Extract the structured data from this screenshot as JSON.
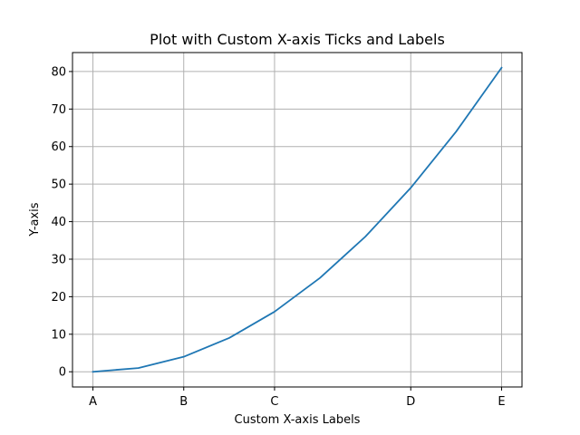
{
  "chart_data": {
    "type": "line",
    "title": "Plot with Custom X-axis Ticks and Labels",
    "xlabel": "Custom X-axis Labels",
    "ylabel": "Y-axis",
    "x": [
      0,
      1,
      2,
      3,
      4,
      5,
      6,
      7,
      8,
      9
    ],
    "series": [
      {
        "values": [
          0,
          1,
          4,
          9,
          16,
          25,
          36,
          49,
          64,
          81
        ],
        "color": "#1f77b4"
      }
    ],
    "xticks": [
      {
        "value": 0,
        "label": "A"
      },
      {
        "value": 2,
        "label": "B"
      },
      {
        "value": 4,
        "label": "C"
      },
      {
        "value": 7,
        "label": "D"
      },
      {
        "value": 9,
        "label": "E"
      }
    ],
    "yticks": [
      0,
      10,
      20,
      30,
      40,
      50,
      60,
      70,
      80
    ],
    "xlim": [
      -0.45,
      9.45
    ],
    "ylim": [
      -4.05,
      85.05
    ],
    "grid": true,
    "grid_color": "#b0b0b0"
  }
}
